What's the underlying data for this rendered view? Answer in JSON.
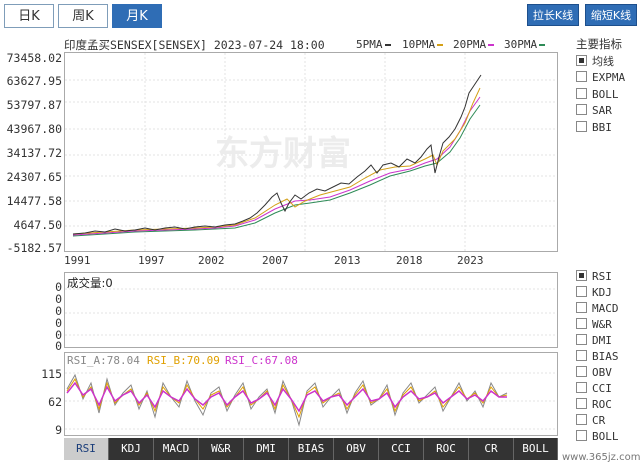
{
  "period_tabs": [
    {
      "label": "日K",
      "active": false
    },
    {
      "label": "周K",
      "active": false
    },
    {
      "label": "月K",
      "active": true
    }
  ],
  "zoom_buttons": {
    "stretch": "拉长K线",
    "shorten": "缩短K线"
  },
  "chart_header": {
    "title": "印度孟买SENSEX[SENSEX] 2023-07-24 18:00",
    "ma": [
      {
        "label": "5PMA",
        "color": "#333333"
      },
      {
        "label": "10PMA",
        "color": "#d4a017"
      },
      {
        "label": "20PMA",
        "color": "#cc33cc"
      },
      {
        "label": "30PMA",
        "color": "#2e8b57"
      }
    ]
  },
  "y_axis_labels": [
    "73458.02",
    "63627.95",
    "53797.87",
    "43967.80",
    "34137.72",
    "24307.65",
    "14477.58",
    "4647.50",
    "-5182.57"
  ],
  "x_axis_labels": [
    "1991",
    "1997",
    "2002",
    "2007",
    "2013",
    "2018",
    "2023"
  ],
  "watermark": "东方财富",
  "main_indicator_title": "主要指标",
  "main_indicators": [
    {
      "label": "均线",
      "checked": true
    },
    {
      "label": "EXPMA",
      "checked": false
    },
    {
      "label": "BOLL",
      "checked": false
    },
    {
      "label": "SAR",
      "checked": false
    },
    {
      "label": "BBI",
      "checked": false
    }
  ],
  "volume_panel": {
    "label": "成交量:0",
    "y_labels": [
      "0",
      "0",
      "0",
      "0",
      "0",
      "0"
    ]
  },
  "rsi_panel": {
    "values": [
      {
        "text": "RSI_A:78.04",
        "color": "#888888"
      },
      {
        "text": "RSI_B:70.09",
        "color": "#e0a000"
      },
      {
        "text": "RSI_C:67.08",
        "color": "#cc33cc"
      }
    ],
    "y_labels": [
      "115",
      "62",
      "9"
    ]
  },
  "sub_indicators": [
    {
      "label": "RSI",
      "checked": true
    },
    {
      "label": "KDJ",
      "checked": false
    },
    {
      "label": "MACD",
      "checked": false
    },
    {
      "label": "W&R",
      "checked": false
    },
    {
      "label": "DMI",
      "checked": false
    },
    {
      "label": "BIAS",
      "checked": false
    },
    {
      "label": "OBV",
      "checked": false
    },
    {
      "label": "CCI",
      "checked": false
    },
    {
      "label": "ROC",
      "checked": false
    },
    {
      "label": "CR",
      "checked": false
    },
    {
      "label": "BOLL",
      "checked": false
    }
  ],
  "bottom_tabs": [
    {
      "label": "RSI",
      "active": true
    },
    {
      "label": "KDJ",
      "active": false
    },
    {
      "label": "MACD",
      "active": false
    },
    {
      "label": "W&R",
      "active": false
    },
    {
      "label": "DMI",
      "active": false
    },
    {
      "label": "BIAS",
      "active": false
    },
    {
      "label": "OBV",
      "active": false
    },
    {
      "label": "CCI",
      "active": false
    },
    {
      "label": "ROC",
      "active": false
    },
    {
      "label": "CR",
      "active": false
    },
    {
      "label": "BOLL",
      "active": false
    }
  ],
  "site_watermark": "www.365jz.com"
}
